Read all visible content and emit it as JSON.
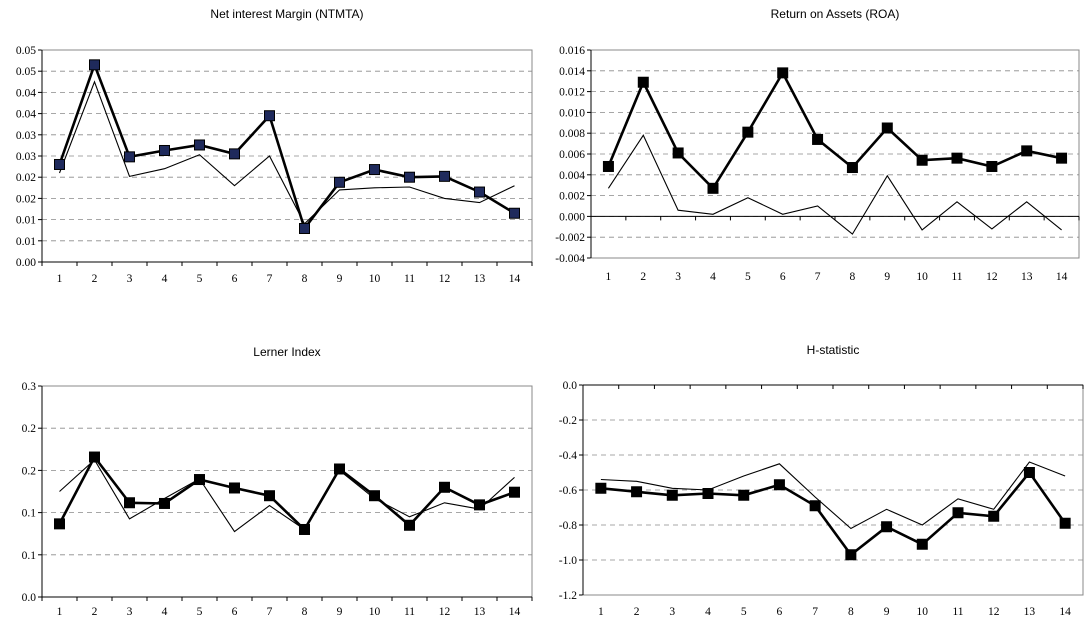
{
  "chart_data": [
    {
      "type": "line",
      "title": "Net interest Margin (NTMTA)",
      "categories": [
        "1",
        "2",
        "3",
        "4",
        "5",
        "6",
        "7",
        "8",
        "9",
        "10",
        "11",
        "12",
        "13",
        "14"
      ],
      "ylim": [
        0.0,
        0.05
      ],
      "yticks": [
        "0.00",
        "0.01",
        "0.01",
        "0.02",
        "0.02",
        "0.03",
        "0.03",
        "0.04",
        "0.04",
        "0.05",
        "0.05"
      ],
      "ytick_values": [
        0.0,
        0.005,
        0.01,
        0.015,
        0.02,
        0.025,
        0.03,
        0.035,
        0.04,
        0.045,
        0.05
      ],
      "grid": "horizontal dashed",
      "series": [
        {
          "style": "thick-square",
          "values": [
            0.023,
            0.0465,
            0.0248,
            0.0263,
            0.0276,
            0.0255,
            0.0345,
            0.0079,
            0.0188,
            0.0218,
            0.02,
            0.0202,
            0.0165,
            0.0115
          ]
        },
        {
          "style": "thin",
          "values": [
            0.021,
            0.0425,
            0.0202,
            0.022,
            0.0253,
            0.018,
            0.025,
            0.009,
            0.017,
            0.0175,
            0.0177,
            0.015,
            0.014,
            0.018
          ]
        }
      ]
    },
    {
      "type": "line",
      "title": "Return on Assets (ROA)",
      "categories": [
        "1",
        "2",
        "3",
        "4",
        "5",
        "6",
        "7",
        "8",
        "9",
        "10",
        "11",
        "12",
        "13",
        "14"
      ],
      "ylim": [
        -0.004,
        0.016
      ],
      "yticks": [
        "-0.004",
        "-0.002",
        "0.000",
        "0.002",
        "0.004",
        "0.006",
        "0.008",
        "0.010",
        "0.012",
        "0.014",
        "0.016"
      ],
      "ytick_values": [
        -0.004,
        -0.002,
        0.0,
        0.002,
        0.004,
        0.006,
        0.008,
        0.01,
        0.012,
        0.014,
        0.016
      ],
      "grid": "horizontal dashed",
      "series": [
        {
          "style": "thick-square",
          "values": [
            0.0048,
            0.0129,
            0.0061,
            0.0027,
            0.0081,
            0.0138,
            0.0074,
            0.0047,
            0.0085,
            0.0054,
            0.0056,
            0.0048,
            0.0063,
            0.0056
          ]
        },
        {
          "style": "thin",
          "values": [
            0.0027,
            0.0078,
            0.0006,
            0.0002,
            0.0018,
            0.0002,
            0.001,
            -0.0017,
            0.0039,
            -0.0013,
            0.0014,
            -0.0012,
            0.0014,
            -0.0013
          ]
        }
      ]
    },
    {
      "type": "line",
      "title": "Lerner Index",
      "categories": [
        "1",
        "2",
        "3",
        "4",
        "5",
        "6",
        "7",
        "8",
        "9",
        "10",
        "11",
        "12",
        "13",
        "14"
      ],
      "ylim": [
        0.0,
        0.3
      ],
      "yticks": [
        "0.0",
        "0.1",
        "0.1",
        "0.2",
        "0.2",
        "0.3"
      ],
      "ytick_values": [
        0.0,
        0.06,
        0.12,
        0.18,
        0.24,
        0.3
      ],
      "grid": "horizontal dashed",
      "series": [
        {
          "style": "thick-square",
          "values": [
            0.104,
            0.199,
            0.134,
            0.133,
            0.167,
            0.155,
            0.144,
            0.096,
            0.182,
            0.144,
            0.102,
            0.156,
            0.131,
            0.149
          ]
        },
        {
          "style": "thin",
          "values": [
            0.15,
            0.195,
            0.111,
            0.14,
            0.168,
            0.093,
            0.13,
            0.096,
            0.18,
            0.14,
            0.114,
            0.134,
            0.125,
            0.17
          ]
        }
      ]
    },
    {
      "type": "line",
      "title": "H-statistic",
      "categories": [
        "1",
        "2",
        "3",
        "4",
        "5",
        "6",
        "7",
        "8",
        "9",
        "10",
        "11",
        "12",
        "13",
        "14"
      ],
      "ylim": [
        -1.2,
        0.0
      ],
      "yticks": [
        "-1.2",
        "-1.0",
        "-0.8",
        "-0.6",
        "-0.4",
        "-0.2",
        "0.0"
      ],
      "ytick_values": [
        -1.2,
        -1.0,
        -0.8,
        -0.6,
        -0.4,
        -0.2,
        0.0
      ],
      "grid": "horizontal dashed",
      "series": [
        {
          "style": "thick-square",
          "values": [
            -0.59,
            -0.61,
            -0.63,
            -0.62,
            -0.63,
            -0.57,
            -0.69,
            -0.97,
            -0.81,
            -0.91,
            -0.73,
            -0.75,
            -0.5,
            -0.79
          ]
        },
        {
          "style": "thin",
          "values": [
            -0.54,
            -0.55,
            -0.59,
            -0.6,
            -0.52,
            -0.45,
            -0.64,
            -0.82,
            -0.71,
            -0.8,
            -0.65,
            -0.71,
            -0.44,
            -0.52
          ]
        }
      ]
    }
  ]
}
